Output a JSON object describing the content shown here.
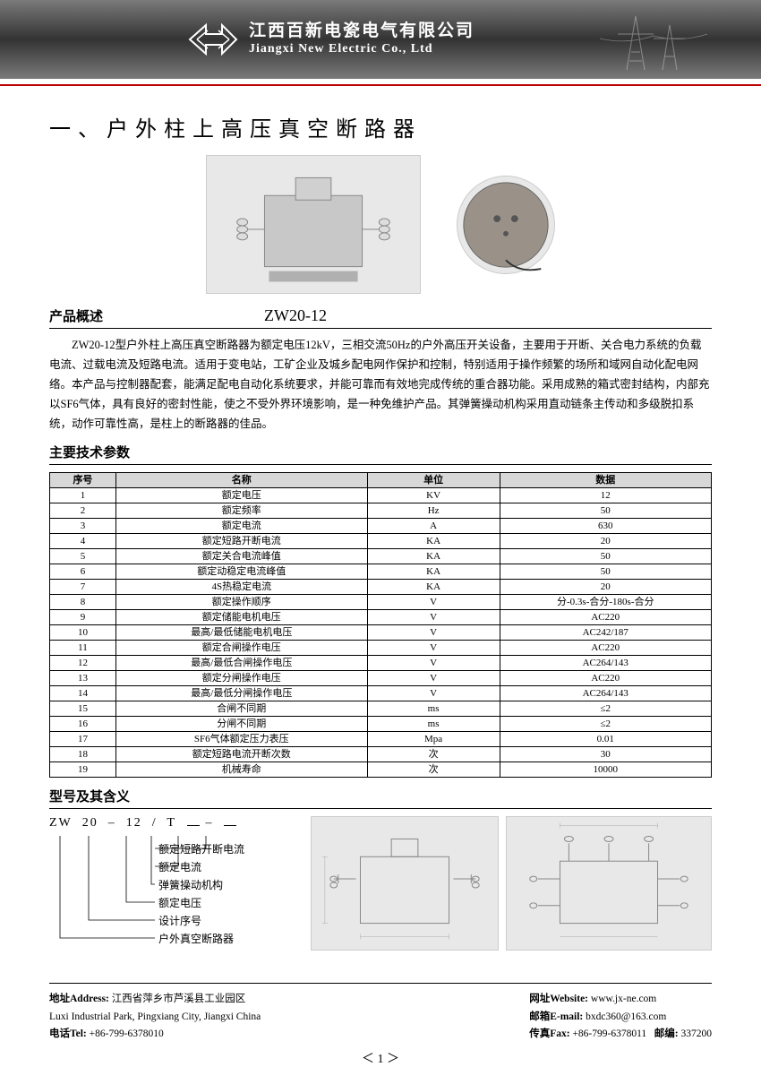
{
  "header": {
    "company_cn": "江西百新电瓷电气有限公司",
    "company_en": "Jiangxi New Electric Co., Ltd"
  },
  "title": "一、户外柱上高压真空断路器",
  "section_overview": "产品概述",
  "model": "ZW20-12",
  "description": "ZW20-12型户外柱上高压真空断路器为额定电压12kV，三相交流50Hz的户外高压开关设备，主要用于开断、关合电力系统的负载电流、过载电流及短路电流。适用于变电站，工矿企业及城乡配电网作保护和控制，特别适用于操作频繁的场所和域网自动化配电网络。本产品与控制器配套，能满足配电自动化系统要求，并能可靠而有效地完成传统的重合器功能。采用成熟的箱式密封结构，内部充以SF6气体，具有良好的密封性能，使之不受外界环境影响，是一种免维护产品。其弹簧操动机构采用直动链条主传动和多级脱扣系统，动作可靠性高，是柱上的断路器的佳品。",
  "section_params": "主要技术参数",
  "table": {
    "headers": [
      "序号",
      "名称",
      "单位",
      "数据"
    ],
    "rows": [
      [
        "1",
        "额定电压",
        "KV",
        "12"
      ],
      [
        "2",
        "额定频率",
        "Hz",
        "50"
      ],
      [
        "3",
        "额定电流",
        "A",
        "630"
      ],
      [
        "4",
        "额定短路开断电流",
        "KA",
        "20"
      ],
      [
        "5",
        "额定关合电流峰值",
        "KA",
        "50"
      ],
      [
        "6",
        "额定动稳定电流峰值",
        "KA",
        "50"
      ],
      [
        "7",
        "4S热稳定电流",
        "KA",
        "20"
      ],
      [
        "8",
        "额定操作顺序",
        "V",
        "分-0.3s-合分-180s-合分"
      ],
      [
        "9",
        "额定储能电机电压",
        "V",
        "AC220"
      ],
      [
        "10",
        "最高/最低储能电机电压",
        "V",
        "AC242/187"
      ],
      [
        "11",
        "额定合闸操作电压",
        "V",
        "AC220"
      ],
      [
        "12",
        "最高/最低合闸操作电压",
        "V",
        "AC264/143"
      ],
      [
        "13",
        "额定分闸操作电压",
        "V",
        "AC220"
      ],
      [
        "14",
        "最高/最低分闸操作电压",
        "V",
        "AC264/143"
      ],
      [
        "15",
        "合闸不同期",
        "ms",
        "≤2"
      ],
      [
        "16",
        "分闸不同期",
        "ms",
        "≤2"
      ],
      [
        "17",
        "SF6气体额定压力表压",
        "Mpa",
        "0.01"
      ],
      [
        "18",
        "额定短路电流开断次数",
        "次",
        "30"
      ],
      [
        "19",
        "机械寿命",
        "次",
        "10000"
      ]
    ]
  },
  "section_model": "型号及其含义",
  "model_code_parts": [
    "ZW",
    "20",
    "–",
    "12",
    "/",
    "T"
  ],
  "model_meanings": [
    "额定短路开断电流",
    "额定电流",
    "弹簧操动机构",
    "额定电压",
    "设计序号",
    "户外真空断路器"
  ],
  "footer": {
    "address_label": "地址Address:",
    "address_cn": "江西省萍乡市芦溪县工业园区",
    "address_en": "Luxi Industrial Park, Pingxiang City, Jiangxi China",
    "tel_label": "电话Tel:",
    "tel": "+86-799-6378010",
    "web_label": "网址Website:",
    "web": "www.jx-ne.com",
    "email_label": "邮箱E-mail:",
    "email": "bxdc360@163.com",
    "fax_label": "传真Fax:",
    "fax": "+86-799-6378011",
    "zip_label": "邮编:",
    "zip": "337200"
  },
  "page_num": "1"
}
